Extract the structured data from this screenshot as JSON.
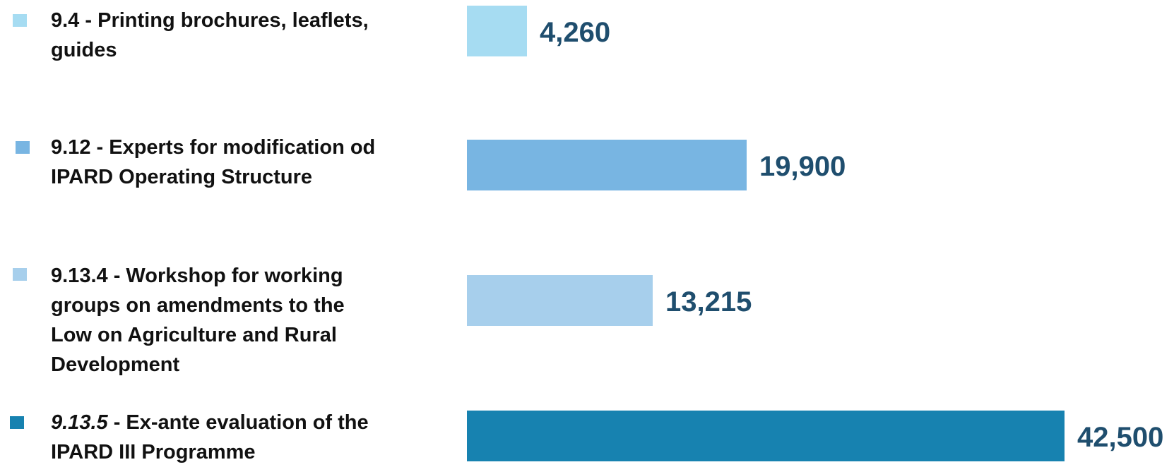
{
  "chart_data": {
    "type": "bar",
    "orientation": "horizontal",
    "categories": [
      "9.4 - Printing brochures, leaflets, guides",
      "9.12 - Experts for modification od IPARD Operating Structure",
      "9.13.4 - Workshop for working groups on amendments to the Low on Agriculture and Rural Development",
      "9.13.5 - Ex-ante evaluation of the IPARD III Programme"
    ],
    "values": [
      4260,
      19900,
      13215,
      42500
    ],
    "value_labels": [
      "4,260",
      "19,900",
      "13,215",
      "42,500"
    ],
    "colors": [
      "#a6dcf2",
      "#78b5e2",
      "#a7cfec",
      "#1782b0"
    ],
    "title": "",
    "xlabel": "",
    "ylabel": "",
    "xlim": [
      0,
      42500
    ],
    "grid": false,
    "legend": "left",
    "items": [
      {
        "code": "9.4",
        "separator": " - ",
        "text": "Printing brochures, leaflets, guides",
        "code_italic": false
      },
      {
        "code": "9.12",
        "separator": " - ",
        "text": "Experts for modification od IPARD Operating Structure",
        "code_italic": false
      },
      {
        "code": "9.13.4",
        "separator": " - ",
        "text": "Workshop for working groups on amendments to the Low on Agriculture and Rural Development",
        "code_italic": false
      },
      {
        "code": "9.13.5",
        "separator": " - ",
        "text": "Ex-ante evaluation of the IPARD III Programme",
        "code_italic": true
      }
    ]
  }
}
